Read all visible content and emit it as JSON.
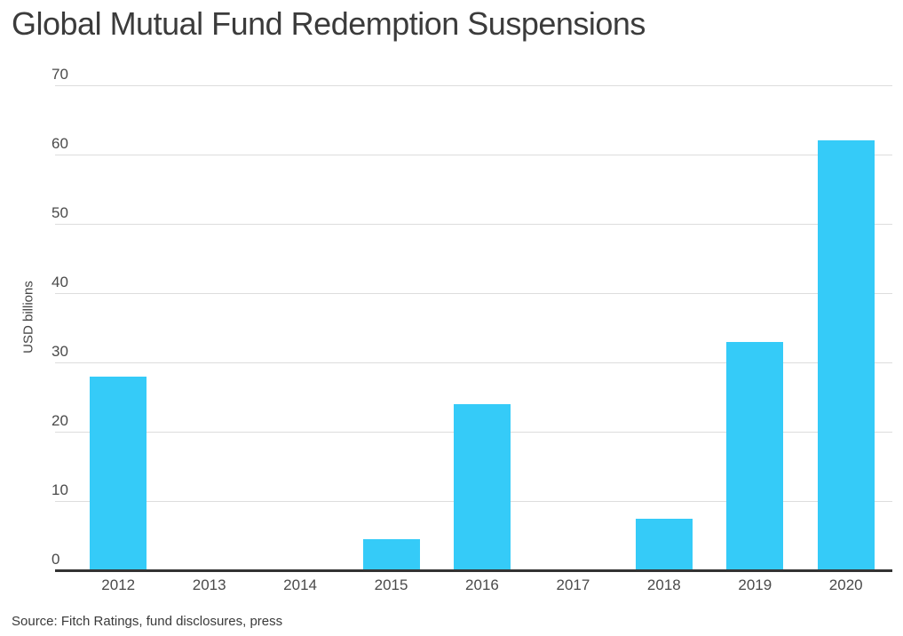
{
  "title": "Global Mutual Fund Redemption Suspensions",
  "y_axis_title": "USD billions",
  "source": "Source: Fitch Ratings, fund disclosures, press",
  "colors": {
    "bar": "#35cbf8",
    "baseline_axis": "#333333",
    "gridline": "#dddddd",
    "title_text": "#3b3b3b",
    "tick_text": "#4a4a4a"
  },
  "chart_data": {
    "type": "bar",
    "title": "Global Mutual Fund Redemption Suspensions",
    "categories": [
      "2012",
      "2013",
      "2014",
      "2015",
      "2016",
      "2017",
      "2018",
      "2019",
      "2020"
    ],
    "values": [
      28,
      0,
      0,
      4.5,
      24,
      0,
      7.5,
      33,
      62
    ],
    "xlabel": "",
    "ylabel": "USD billions",
    "ylim": [
      0,
      70
    ],
    "yticks": [
      0,
      10,
      20,
      30,
      40,
      50,
      60,
      70
    ],
    "grid": true,
    "legend_position": "none",
    "bar_color": "#35cbf8",
    "source": "Source: Fitch Ratings, fund disclosures, press"
  }
}
